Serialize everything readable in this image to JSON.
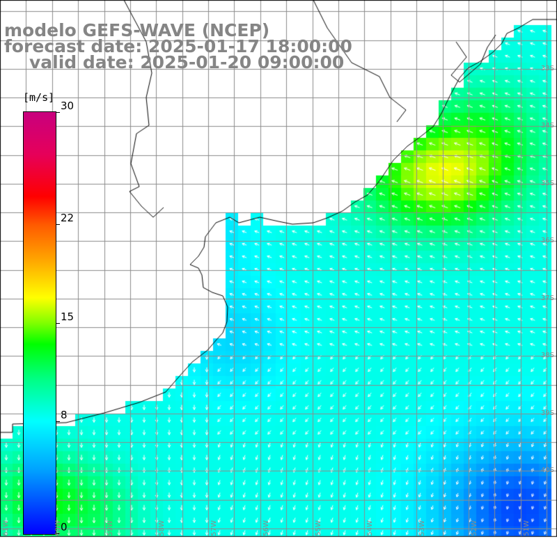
{
  "title": {
    "line1": "modelo GEFS-WAVE (NCEP)",
    "line2": "forecast date: 2025-01-17 18:00:00",
    "line3": "valid date: 2025-01-20 09:00:00"
  },
  "colorbar": {
    "units": "[m/s]",
    "min": 0,
    "max": 30,
    "tick_labels": [
      "30",
      "22",
      "15",
      "8",
      "0"
    ],
    "tick_values": [
      30,
      22,
      15,
      8,
      0
    ],
    "colors": {
      "land": "#ffffff",
      "grid": "#8c8c8c",
      "coast": "#000000",
      "arrow": "#ffffff",
      "title_text": "#858585"
    }
  },
  "axes": {
    "lat_labels": [
      "33S",
      "34S",
      "35S",
      "36S",
      "37S",
      "38S",
      "39S",
      "40S"
    ],
    "lat_values": [
      -33,
      -34,
      -35,
      -36,
      -37,
      -38,
      -39,
      -40
    ],
    "lon_labels": [
      "61W",
      "60W",
      "59W",
      "58W",
      "57W",
      "56W",
      "55W",
      "54W",
      "53W",
      "52W",
      "51W"
    ],
    "lon_values": [
      -61,
      -60,
      -59,
      -58,
      -57,
      -56,
      -55,
      -54,
      -53,
      -52,
      -51
    ]
  },
  "map_data": {
    "type": "wind-speed-heatmap-with-vectors",
    "region": "Rio de la Plata / South Atlantic",
    "lon_range": [
      -61,
      -50.3
    ],
    "lat_range": [
      -41,
      -31.3
    ],
    "wind_speed_notes": "max ~16 m/s near 52.5W 34.3S; min ~1-2 m/s near 51W 40.5S",
    "arrow_direction": "mostly from NE/E in north, from N in south-west"
  }
}
